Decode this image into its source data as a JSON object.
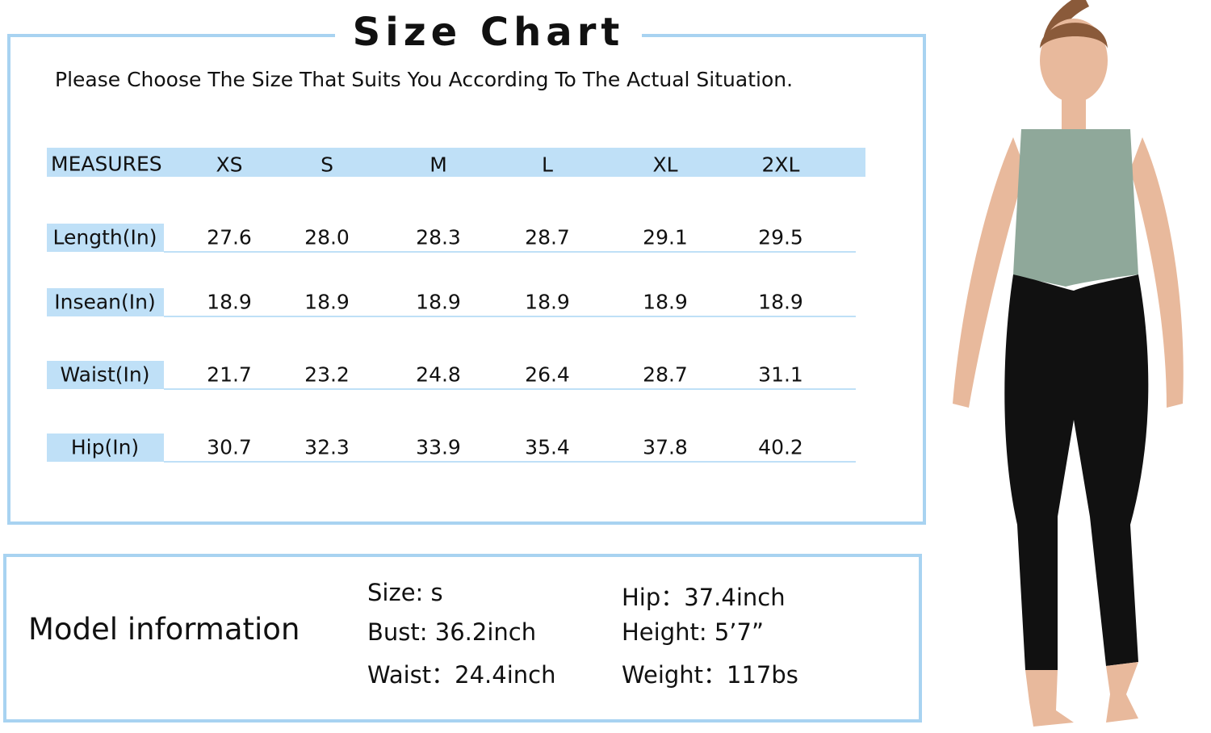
{
  "title": "Size Chart",
  "subtitle": "Please Choose The Size That Suits You According To The Actual Situation.",
  "table": {
    "header": [
      "MEASURES",
      "XS",
      "S",
      "M",
      "L",
      "XL",
      "2XL"
    ],
    "rows": [
      [
        "Length(In)",
        "27.6",
        "28.0",
        "28.3",
        "28.7",
        "29.1",
        "29.5"
      ],
      [
        "Insean(In)",
        "18.9",
        "18.9",
        "18.9",
        "18.9",
        "18.9",
        "18.9"
      ],
      [
        "Waist(In)",
        "21.7",
        "23.2",
        "24.8",
        "26.4",
        "28.7",
        "31.1"
      ],
      [
        "Hip(In)",
        "30.7",
        "32.3",
        "33.9",
        "35.4",
        "37.8",
        "40.2"
      ]
    ]
  },
  "model_info": {
    "title": "Model information",
    "left": [
      "Size: s",
      "Bust: 36.2inch",
      "Waist：24.4inch"
    ],
    "right": [
      "Hip：37.4inch",
      "Height:  5’7”",
      "Weight：117bs"
    ]
  }
}
